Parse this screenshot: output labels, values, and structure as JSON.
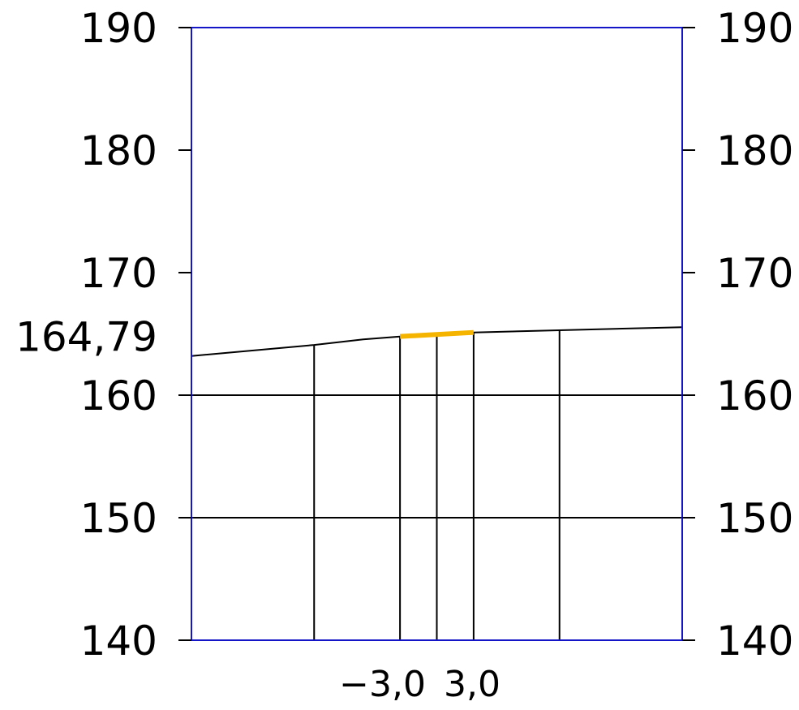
{
  "diagram": {
    "type": "cross-section",
    "y_axis": {
      "min": 140,
      "max": 190,
      "ticks": [
        "140",
        "150",
        "160",
        "170",
        "180",
        "190"
      ],
      "labels_both_sides": true
    },
    "reference_level_label": "164,79",
    "reference_level_value": 164.79,
    "x_labels": [
      "−3,0",
      "3,0"
    ],
    "x_range": [
      -20,
      20
    ],
    "ground_profile": [
      {
        "x": -20.0,
        "y": 163.2
      },
      {
        "x": -10.0,
        "y": 164.1
      },
      {
        "x": -6.0,
        "y": 164.55
      },
      {
        "x": -3.0,
        "y": 164.79
      },
      {
        "x": 3.0,
        "y": 165.12
      },
      {
        "x": 10.0,
        "y": 165.3
      },
      {
        "x": 20.0,
        "y": 165.55
      }
    ],
    "pavement": {
      "from": -3.0,
      "to": 3.0,
      "y_from": 164.79,
      "y_to": 165.12
    },
    "verticals": [
      -10.0,
      -3.0,
      0.0,
      3.0,
      10.0
    ],
    "grid_levels": [
      150,
      160
    ],
    "colors": {
      "frame": "#1515c8",
      "lines": "#000000",
      "pavement": "#f5b400"
    }
  }
}
